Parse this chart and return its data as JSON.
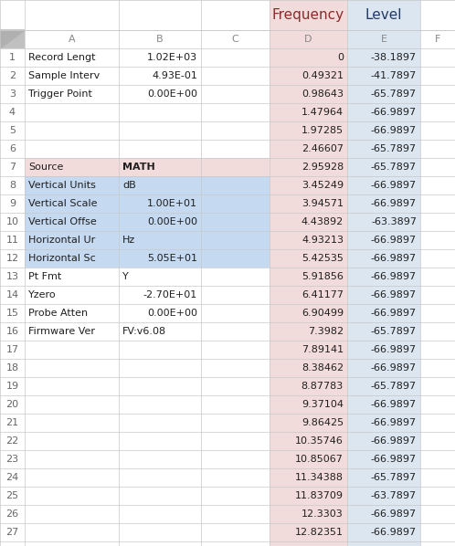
{
  "col_A": [
    "Record Lengt",
    "Sample Interv",
    "Trigger Point",
    "",
    "",
    "",
    "Source",
    "Vertical Units",
    "Vertical Scale",
    "Vertical Offse",
    "Horizontal Ur",
    "Horizontal Sc",
    "Pt Fmt",
    "Yzero",
    "Probe Atten",
    "Firmware Ver",
    "",
    "",
    "",
    "",
    "",
    "",
    "",
    "",
    "",
    "",
    ""
  ],
  "col_B": [
    "1.02E+03",
    "4.93E-01",
    "0.00E+00",
    "",
    "",
    "",
    "MATH",
    "dB",
    "1.00E+01",
    "0.00E+00",
    "Hz",
    "5.05E+01",
    "Y",
    "-2.70E+01",
    "0.00E+00",
    "FV:v6.08",
    "",
    "",
    "",
    "",
    "",
    "",
    "",
    "",
    "",
    "",
    ""
  ],
  "col_B_bold": [
    false,
    false,
    false,
    false,
    false,
    false,
    true,
    false,
    false,
    false,
    false,
    false,
    false,
    false,
    false,
    false,
    false,
    false,
    false,
    false,
    false,
    false,
    false,
    false,
    false,
    false,
    false
  ],
  "col_B_right": [
    true,
    true,
    true,
    false,
    false,
    false,
    false,
    false,
    true,
    true,
    false,
    true,
    false,
    true,
    true,
    false,
    false,
    false,
    false,
    false,
    false,
    false,
    false,
    false,
    false,
    false,
    false
  ],
  "col_D": [
    "0",
    "0.49321",
    "0.98643",
    "1.47964",
    "1.97285",
    "2.46607",
    "2.95928",
    "3.45249",
    "3.94571",
    "4.43892",
    "4.93213",
    "5.42535",
    "5.91856",
    "6.41177",
    "6.90499",
    "7.3982",
    "7.89141",
    "8.38462",
    "8.87783",
    "9.37104",
    "9.86425",
    "10.35746",
    "10.85067",
    "11.34388",
    "11.83709",
    "12.3303",
    "12.82351"
  ],
  "col_E": [
    "-38.1897",
    "-41.7897",
    "-65.7897",
    "-66.9897",
    "-66.9897",
    "-65.7897",
    "-65.7897",
    "-66.9897",
    "-66.9897",
    "-63.3897",
    "-66.9897",
    "-66.9897",
    "-66.9897",
    "-66.9897",
    "-66.9897",
    "-65.7897",
    "-66.9897",
    "-66.9897",
    "-65.7897",
    "-66.9897",
    "-66.9897",
    "-66.9897",
    "-66.9897",
    "-65.7897",
    "-63.7897",
    "-66.9897",
    "-66.9897"
  ],
  "blue_highlight_rows": [
    8,
    9,
    10,
    11,
    12
  ],
  "pink_color": "#f2dcdb",
  "blue_col_color": "#dce6f1",
  "blue_highlight_color": "#c5d9f1",
  "pink_highlight_rows": [
    7,
    8,
    9,
    10,
    11,
    12
  ],
  "grid_color": "#c8c8c8",
  "bg_color": "#ffffff",
  "text_color": "#1f1f1f",
  "rownum_color": "#666666",
  "col_header_color": "#888888",
  "freq_text_color": "#8b2a2a",
  "level_text_color": "#1f3864",
  "corner_gray": "#c0c0c0"
}
